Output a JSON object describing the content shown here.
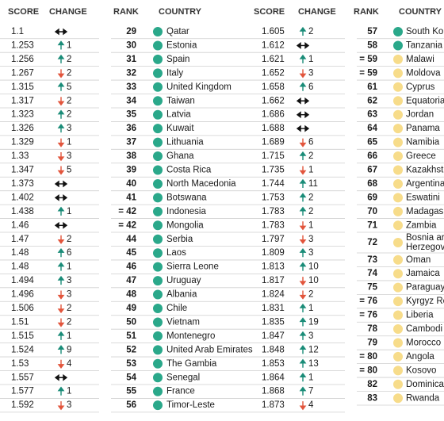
{
  "left": {
    "headers": [
      "SCORE",
      "CHANGE"
    ],
    "rows": [
      {
        "score": 1.1,
        "change": {
          "dir": "same"
        }
      },
      {
        "score": 1.253,
        "change": {
          "dir": "up",
          "n": 1
        }
      },
      {
        "score": 1.256,
        "change": {
          "dir": "up",
          "n": 2
        }
      },
      {
        "score": 1.267,
        "change": {
          "dir": "down",
          "n": 2
        }
      },
      {
        "score": 1.315,
        "change": {
          "dir": "up",
          "n": 5
        }
      },
      {
        "score": 1.317,
        "change": {
          "dir": "down",
          "n": 2
        }
      },
      {
        "score": 1.323,
        "change": {
          "dir": "up",
          "n": 2
        }
      },
      {
        "score": 1.326,
        "change": {
          "dir": "up",
          "n": 3
        }
      },
      {
        "score": 1.329,
        "change": {
          "dir": "down",
          "n": 1
        }
      },
      {
        "score": 1.33,
        "change": {
          "dir": "down",
          "n": 3
        }
      },
      {
        "score": 1.347,
        "change": {
          "dir": "down",
          "n": 5
        }
      },
      {
        "score": 1.373,
        "change": {
          "dir": "same"
        }
      },
      {
        "score": 1.402,
        "change": {
          "dir": "same"
        }
      },
      {
        "score": 1.438,
        "change": {
          "dir": "up",
          "n": 1
        }
      },
      {
        "score": 1.46,
        "change": {
          "dir": "same"
        }
      },
      {
        "score": 1.47,
        "change": {
          "dir": "down",
          "n": 2
        }
      },
      {
        "score": 1.48,
        "change": {
          "dir": "up",
          "n": 6
        }
      },
      {
        "score": 1.48,
        "change": {
          "dir": "up",
          "n": 1
        }
      },
      {
        "score": 1.494,
        "change": {
          "dir": "up",
          "n": 3
        }
      },
      {
        "score": 1.496,
        "change": {
          "dir": "down",
          "n": 3
        }
      },
      {
        "score": 1.506,
        "change": {
          "dir": "down",
          "n": 2
        }
      },
      {
        "score": 1.51,
        "change": {
          "dir": "down",
          "n": 2
        }
      },
      {
        "score": 1.515,
        "change": {
          "dir": "up",
          "n": 1
        }
      },
      {
        "score": 1.524,
        "change": {
          "dir": "up",
          "n": 9
        }
      },
      {
        "score": 1.53,
        "change": {
          "dir": "down",
          "n": 4
        }
      },
      {
        "score": 1.557,
        "change": {
          "dir": "same"
        }
      },
      {
        "score": 1.577,
        "change": {
          "dir": "up",
          "n": 1
        }
      },
      {
        "score": 1.592,
        "change": {
          "dir": "down",
          "n": 3
        }
      }
    ]
  },
  "middle": {
    "headers": [
      "RANK",
      "COUNTRY",
      "SCORE",
      "CHANGE"
    ],
    "rows": [
      {
        "rank": 29,
        "country": "Qatar",
        "dot": "#2aa88a",
        "score": 1.605,
        "change": {
          "dir": "up",
          "n": 2
        }
      },
      {
        "rank": 30,
        "country": "Estonia",
        "dot": "#2aa88a",
        "score": 1.612,
        "change": {
          "dir": "same"
        }
      },
      {
        "rank": 31,
        "country": "Spain",
        "dot": "#2aa88a",
        "score": 1.621,
        "change": {
          "dir": "up",
          "n": 1
        }
      },
      {
        "rank": 32,
        "country": "Italy",
        "dot": "#2aa88a",
        "score": 1.652,
        "change": {
          "dir": "down",
          "n": 3
        }
      },
      {
        "rank": 33,
        "country": "United Kingdom",
        "dot": "#2aa88a",
        "score": 1.658,
        "change": {
          "dir": "up",
          "n": 6
        }
      },
      {
        "rank": 34,
        "country": "Taiwan",
        "dot": "#2aa88a",
        "score": 1.662,
        "change": {
          "dir": "same"
        }
      },
      {
        "rank": 35,
        "country": "Latvia",
        "dot": "#2aa88a",
        "score": 1.686,
        "change": {
          "dir": "same"
        }
      },
      {
        "rank": 36,
        "country": "Kuwait",
        "dot": "#2aa88a",
        "score": 1.688,
        "change": {
          "dir": "same"
        }
      },
      {
        "rank": 37,
        "country": "Lithuania",
        "dot": "#2aa88a",
        "score": 1.689,
        "change": {
          "dir": "down",
          "n": 6
        }
      },
      {
        "rank": 38,
        "country": "Ghana",
        "dot": "#2aa88a",
        "score": 1.715,
        "change": {
          "dir": "up",
          "n": 2
        }
      },
      {
        "rank": 39,
        "country": "Costa Rica",
        "dot": "#2aa88a",
        "score": 1.735,
        "change": {
          "dir": "down",
          "n": 1
        }
      },
      {
        "rank": 40,
        "country": "North Macedonia",
        "dot": "#2aa88a",
        "score": 1.744,
        "change": {
          "dir": "up",
          "n": 11
        }
      },
      {
        "rank": 41,
        "country": "Botswana",
        "dot": "#2aa88a",
        "score": 1.753,
        "change": {
          "dir": "up",
          "n": 2
        }
      },
      {
        "rank": "= 42",
        "country": "Indonesia",
        "dot": "#2aa88a",
        "score": 1.783,
        "change": {
          "dir": "up",
          "n": 2
        }
      },
      {
        "rank": "= 42",
        "country": "Mongolia",
        "dot": "#2aa88a",
        "score": 1.783,
        "change": {
          "dir": "down",
          "n": 1
        }
      },
      {
        "rank": 44,
        "country": "Serbia",
        "dot": "#2aa88a",
        "score": 1.797,
        "change": {
          "dir": "down",
          "n": 3
        }
      },
      {
        "rank": 45,
        "country": "Laos",
        "dot": "#2aa88a",
        "score": 1.809,
        "change": {
          "dir": "up",
          "n": 3
        }
      },
      {
        "rank": 46,
        "country": "Sierra Leone",
        "dot": "#2aa88a",
        "score": 1.813,
        "change": {
          "dir": "up",
          "n": 10
        }
      },
      {
        "rank": 47,
        "country": "Uruguay",
        "dot": "#2aa88a",
        "score": 1.817,
        "change": {
          "dir": "down",
          "n": 10
        }
      },
      {
        "rank": 48,
        "country": "Albania",
        "dot": "#2aa88a",
        "score": 1.824,
        "change": {
          "dir": "down",
          "n": 2
        }
      },
      {
        "rank": 49,
        "country": "Chile",
        "dot": "#2aa88a",
        "score": 1.831,
        "change": {
          "dir": "up",
          "n": 1
        }
      },
      {
        "rank": 50,
        "country": "Vietnam",
        "dot": "#2aa88a",
        "score": 1.835,
        "change": {
          "dir": "up",
          "n": 19
        }
      },
      {
        "rank": 51,
        "country": "Montenegro",
        "dot": "#2aa88a",
        "score": 1.847,
        "change": {
          "dir": "up",
          "n": 3
        }
      },
      {
        "rank": 52,
        "country": "United Arab Emirates",
        "dot": "#2aa88a",
        "score": 1.848,
        "change": {
          "dir": "up",
          "n": 12
        }
      },
      {
        "rank": 53,
        "country": "The Gambia",
        "dot": "#2aa88a",
        "score": 1.853,
        "change": {
          "dir": "up",
          "n": 13
        }
      },
      {
        "rank": 54,
        "country": "Senegal",
        "dot": "#2aa88a",
        "score": 1.864,
        "change": {
          "dir": "up",
          "n": 1
        }
      },
      {
        "rank": 55,
        "country": "France",
        "dot": "#2aa88a",
        "score": 1.868,
        "change": {
          "dir": "up",
          "n": 7
        }
      },
      {
        "rank": 56,
        "country": "Timor-Leste",
        "dot": "#2aa88a",
        "score": 1.873,
        "change": {
          "dir": "down",
          "n": 4
        }
      }
    ]
  },
  "right": {
    "headers": [
      "RANK",
      "COUNTRY"
    ],
    "rows": [
      {
        "rank": 57,
        "country": "South Ko",
        "dot": "#2aa88a"
      },
      {
        "rank": 58,
        "country": "Tanzania",
        "dot": "#2aa88a"
      },
      {
        "rank": "= 59",
        "country": "Malawi",
        "dot": "#f7dc8a"
      },
      {
        "rank": "= 59",
        "country": "Moldova",
        "dot": "#f7dc8a"
      },
      {
        "rank": 61,
        "country": "Cyprus",
        "dot": "#f7dc8a"
      },
      {
        "rank": 62,
        "country": "Equatoria",
        "dot": "#f7dc8a"
      },
      {
        "rank": 63,
        "country": "Jordan",
        "dot": "#f7dc8a"
      },
      {
        "rank": 64,
        "country": "Panama",
        "dot": "#f7dc8a"
      },
      {
        "rank": 65,
        "country": "Namibia",
        "dot": "#f7dc8a"
      },
      {
        "rank": 66,
        "country": "Greece",
        "dot": "#f7dc8a"
      },
      {
        "rank": 67,
        "country": "Kazakhst",
        "dot": "#f7dc8a"
      },
      {
        "rank": 68,
        "country": "Argentina",
        "dot": "#f7dc8a"
      },
      {
        "rank": 69,
        "country": "Eswatini",
        "dot": "#f7dc8a"
      },
      {
        "rank": 70,
        "country": "Madagas",
        "dot": "#f7dc8a"
      },
      {
        "rank": 71,
        "country": "Zambia",
        "dot": "#f7dc8a"
      },
      {
        "rank": 72,
        "country": [
          "Bosnia ar",
          "Herzegov"
        ],
        "dot": "#f7dc8a"
      },
      {
        "rank": 73,
        "country": "Oman",
        "dot": "#f7dc8a"
      },
      {
        "rank": 74,
        "country": "Jamaica",
        "dot": "#f7dc8a"
      },
      {
        "rank": 75,
        "country": "Paraguay",
        "dot": "#f7dc8a"
      },
      {
        "rank": "= 76",
        "country": "Kyrgyz Re",
        "dot": "#f7dc8a"
      },
      {
        "rank": "= 76",
        "country": "Liberia",
        "dot": "#f7dc8a"
      },
      {
        "rank": 78,
        "country": "Cambodi",
        "dot": "#f7dc8a"
      },
      {
        "rank": 79,
        "country": "Morocco",
        "dot": "#f7dc8a"
      },
      {
        "rank": "= 80",
        "country": "Angola",
        "dot": "#f7dc8a"
      },
      {
        "rank": "= 80",
        "country": "Kosovo",
        "dot": "#f7dc8a"
      },
      {
        "rank": 82,
        "country": "Dominica",
        "dot": "#f7dc8a"
      },
      {
        "rank": 83,
        "country": "Rwanda",
        "dot": "#f7dc8a"
      }
    ]
  }
}
